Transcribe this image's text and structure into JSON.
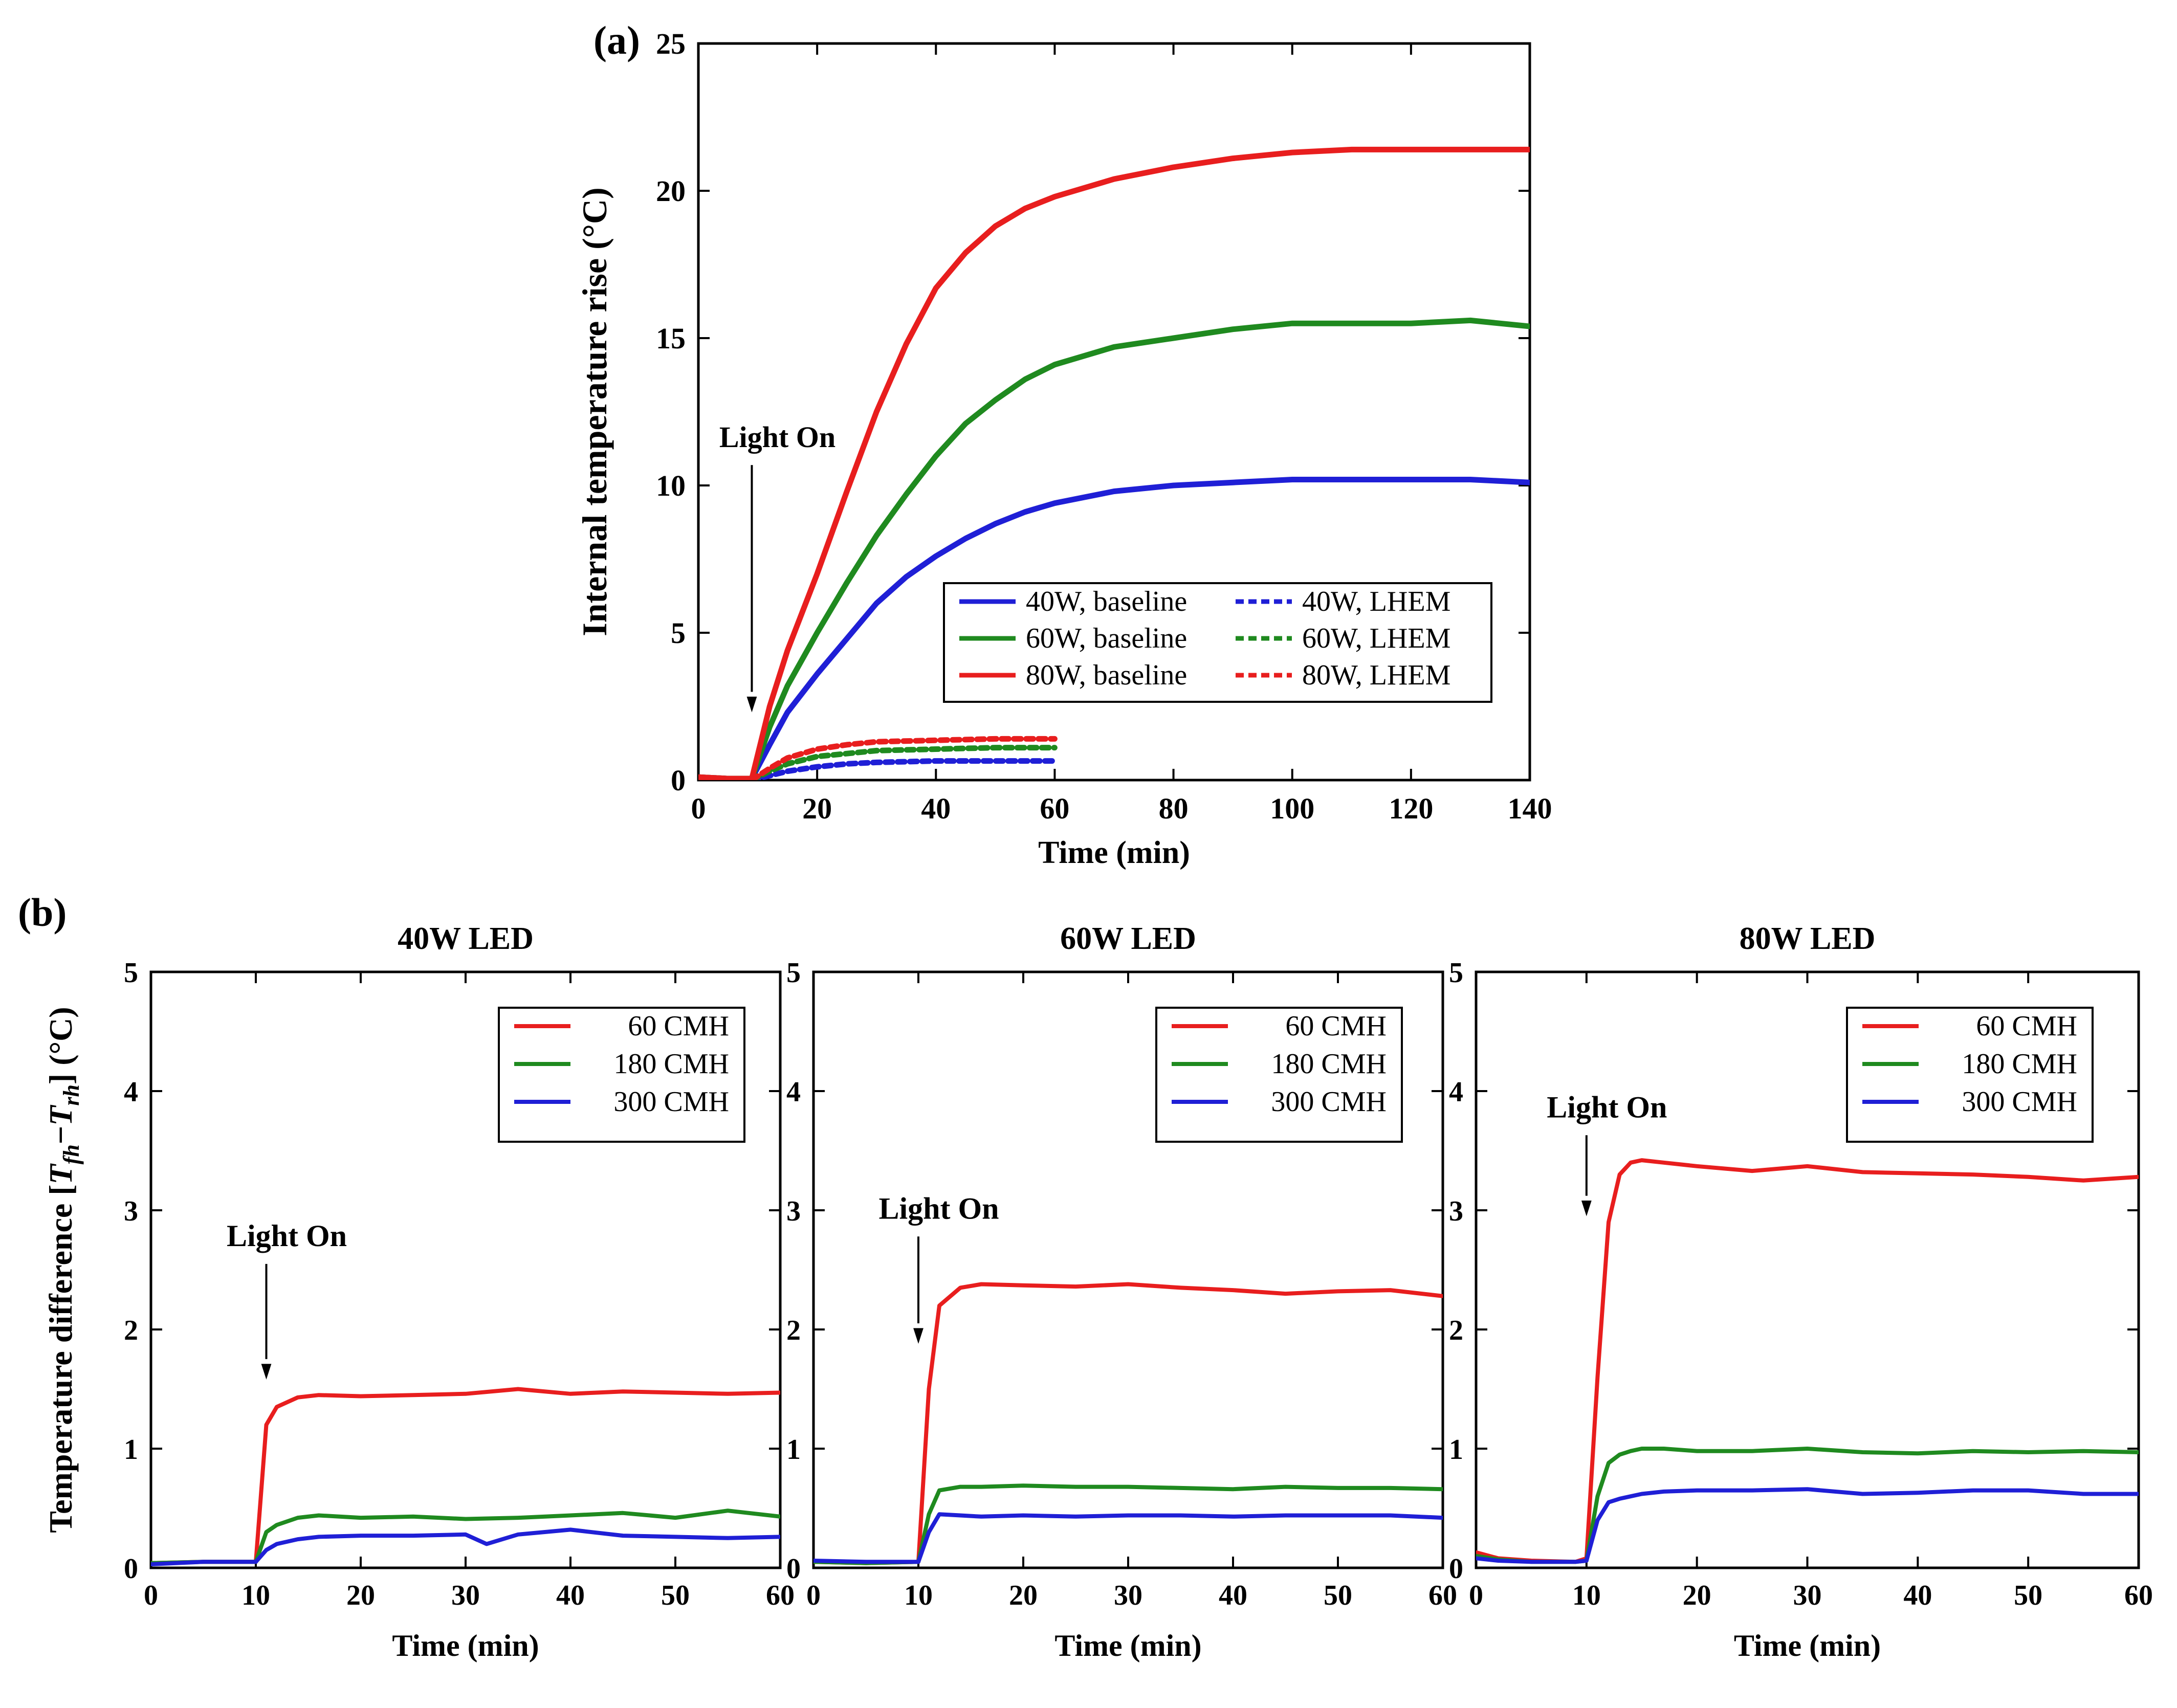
{
  "chart_data": [
    {
      "id": "a",
      "panel_label": "(a)",
      "type": "line",
      "title": "",
      "xlabel": "Time (min)",
      "ylabel": "Internal temperature rise (°C)",
      "xlim": [
        0,
        140
      ],
      "ylim": [
        0,
        25
      ],
      "xticks": [
        0,
        20,
        40,
        60,
        80,
        100,
        120,
        140
      ],
      "yticks": [
        0,
        5,
        10,
        15,
        20,
        25
      ],
      "legend_position": "lower-right",
      "annotation": {
        "text": "Light On",
        "x": 9,
        "y": 2.3,
        "text_y": 11.3
      },
      "series": [
        {
          "name": "40W, baseline",
          "color": "#1f1fd6",
          "dash": false,
          "x": [
            0,
            5,
            9,
            12,
            15,
            20,
            25,
            30,
            35,
            40,
            45,
            50,
            55,
            60,
            70,
            80,
            90,
            100,
            110,
            120,
            130,
            140
          ],
          "y": [
            0.1,
            0.05,
            0.05,
            1.2,
            2.3,
            3.6,
            4.8,
            6.0,
            6.9,
            7.6,
            8.2,
            8.7,
            9.1,
            9.4,
            9.8,
            10.0,
            10.1,
            10.2,
            10.2,
            10.2,
            10.2,
            10.1
          ]
        },
        {
          "name": "60W, baseline",
          "color": "#1f8a1f",
          "dash": false,
          "x": [
            0,
            5,
            9,
            12,
            15,
            20,
            25,
            30,
            35,
            40,
            45,
            50,
            55,
            60,
            70,
            80,
            90,
            100,
            110,
            120,
            130,
            140
          ],
          "y": [
            0.1,
            0.05,
            0.05,
            1.8,
            3.2,
            5.0,
            6.7,
            8.3,
            9.7,
            11.0,
            12.1,
            12.9,
            13.6,
            14.1,
            14.7,
            15.0,
            15.3,
            15.5,
            15.5,
            15.5,
            15.6,
            15.4
          ]
        },
        {
          "name": "80W, baseline",
          "color": "#e81e1e",
          "dash": false,
          "x": [
            0,
            5,
            9,
            12,
            15,
            20,
            25,
            30,
            35,
            40,
            45,
            50,
            55,
            60,
            70,
            80,
            90,
            100,
            110,
            120,
            130,
            140
          ],
          "y": [
            0.1,
            0.05,
            0.05,
            2.5,
            4.4,
            7.0,
            9.8,
            12.5,
            14.8,
            16.7,
            17.9,
            18.8,
            19.4,
            19.8,
            20.4,
            20.8,
            21.1,
            21.3,
            21.4,
            21.4,
            21.4,
            21.4
          ]
        },
        {
          "name": "40W, LHEM",
          "color": "#1f1fd6",
          "dash": true,
          "x": [
            9,
            12,
            15,
            20,
            25,
            30,
            40,
            50,
            60
          ],
          "y": [
            0.0,
            0.15,
            0.3,
            0.45,
            0.55,
            0.6,
            0.65,
            0.65,
            0.65
          ]
        },
        {
          "name": "60W, LHEM",
          "color": "#1f8a1f",
          "dash": true,
          "x": [
            9,
            12,
            15,
            20,
            25,
            30,
            40,
            50,
            60
          ],
          "y": [
            0.0,
            0.3,
            0.55,
            0.8,
            0.9,
            1.0,
            1.05,
            1.1,
            1.1
          ]
        },
        {
          "name": "80W, LHEM",
          "color": "#e81e1e",
          "dash": true,
          "x": [
            9,
            12,
            15,
            20,
            25,
            30,
            40,
            50,
            60
          ],
          "y": [
            0.0,
            0.4,
            0.75,
            1.05,
            1.2,
            1.3,
            1.35,
            1.4,
            1.4
          ]
        }
      ]
    },
    {
      "id": "b1",
      "panel_label": "(b)",
      "type": "line",
      "title": "40W LED",
      "xlabel": "Time (min)",
      "ylabel": "Temperature difference [T_fh − T_rh] (°C)",
      "ylabel_parts": {
        "prefix": "Temperature difference [",
        "t1": "T",
        "s1": "fh",
        "minus": "−",
        "t2": "T",
        "s2": "rh",
        "suffix": "] (°C)"
      },
      "xlim": [
        0,
        60
      ],
      "ylim": [
        0,
        5
      ],
      "xticks": [
        0,
        10,
        20,
        30,
        40,
        50,
        60
      ],
      "yticks": [
        0,
        1,
        2,
        3,
        4,
        5
      ],
      "legend_position": "top-right",
      "annotation": {
        "text": "Light On",
        "x": 11,
        "y": 1.58,
        "text_y": 2.7
      },
      "series": [
        {
          "name": "60 CMH",
          "color": "#e81e1e",
          "x": [
            0,
            5,
            10,
            11,
            12,
            14,
            16,
            20,
            25,
            30,
            35,
            40,
            45,
            50,
            55,
            60
          ],
          "y": [
            0.04,
            0.05,
            0.05,
            1.2,
            1.35,
            1.43,
            1.45,
            1.44,
            1.45,
            1.46,
            1.5,
            1.46,
            1.48,
            1.47,
            1.46,
            1.47
          ]
        },
        {
          "name": "180 CMH",
          "color": "#1f8a1f",
          "x": [
            0,
            5,
            10,
            11,
            12,
            14,
            16,
            20,
            25,
            30,
            35,
            40,
            45,
            50,
            55,
            60
          ],
          "y": [
            0.04,
            0.05,
            0.05,
            0.3,
            0.36,
            0.42,
            0.44,
            0.42,
            0.43,
            0.41,
            0.42,
            0.44,
            0.46,
            0.42,
            0.48,
            0.43
          ]
        },
        {
          "name": "300 CMH",
          "color": "#1f1fd6",
          "x": [
            0,
            5,
            10,
            11,
            12,
            14,
            16,
            20,
            25,
            30,
            32,
            35,
            40,
            45,
            50,
            55,
            60
          ],
          "y": [
            0.03,
            0.05,
            0.05,
            0.15,
            0.2,
            0.24,
            0.26,
            0.27,
            0.27,
            0.28,
            0.2,
            0.28,
            0.32,
            0.27,
            0.26,
            0.25,
            0.26
          ]
        }
      ]
    },
    {
      "id": "b2",
      "panel_label": "",
      "type": "line",
      "title": "60W LED",
      "xlabel": "Time (min)",
      "ylabel": "",
      "xlim": [
        0,
        60
      ],
      "ylim": [
        0,
        5
      ],
      "xticks": [
        0,
        10,
        20,
        30,
        40,
        50,
        60
      ],
      "yticks": [
        0,
        1,
        2,
        3,
        4,
        5
      ],
      "legend_position": "top-right",
      "annotation": {
        "text": "Light On",
        "x": 10,
        "y": 1.88,
        "text_y": 2.93
      },
      "series": [
        {
          "name": "60 CMH",
          "color": "#e81e1e",
          "x": [
            0,
            5,
            10,
            11,
            12,
            14,
            16,
            20,
            25,
            30,
            35,
            40,
            45,
            50,
            55,
            60
          ],
          "y": [
            0.05,
            0.04,
            0.05,
            1.5,
            2.2,
            2.35,
            2.38,
            2.37,
            2.36,
            2.38,
            2.35,
            2.33,
            2.3,
            2.32,
            2.33,
            2.28
          ]
        },
        {
          "name": "180 CMH",
          "color": "#1f8a1f",
          "x": [
            0,
            5,
            10,
            11,
            12,
            14,
            16,
            20,
            25,
            30,
            35,
            40,
            45,
            50,
            55,
            60
          ],
          "y": [
            0.05,
            0.04,
            0.05,
            0.45,
            0.65,
            0.68,
            0.68,
            0.69,
            0.68,
            0.68,
            0.67,
            0.66,
            0.68,
            0.67,
            0.67,
            0.66
          ]
        },
        {
          "name": "300 CMH",
          "color": "#1f1fd6",
          "x": [
            0,
            5,
            10,
            11,
            12,
            14,
            16,
            20,
            25,
            30,
            35,
            40,
            45,
            50,
            55,
            60
          ],
          "y": [
            0.06,
            0.05,
            0.05,
            0.3,
            0.45,
            0.44,
            0.43,
            0.44,
            0.43,
            0.44,
            0.44,
            0.43,
            0.44,
            0.44,
            0.44,
            0.42
          ]
        }
      ]
    },
    {
      "id": "b3",
      "panel_label": "",
      "type": "line",
      "title": "80W LED",
      "xlabel": "Time (min)",
      "ylabel": "",
      "xlim": [
        0,
        60
      ],
      "ylim": [
        0,
        5
      ],
      "xticks": [
        0,
        10,
        20,
        30,
        40,
        50,
        60
      ],
      "yticks": [
        0,
        1,
        2,
        3,
        4,
        5
      ],
      "legend_position": "top-right",
      "annotation": {
        "text": "Light On",
        "x": 10,
        "y": 2.95,
        "text_y": 3.78
      },
      "series": [
        {
          "name": "60 CMH",
          "color": "#e81e1e",
          "x": [
            0,
            2,
            5,
            9,
            10,
            11,
            12,
            13,
            14,
            15,
            17,
            20,
            25,
            30,
            35,
            40,
            45,
            50,
            55,
            60
          ],
          "y": [
            0.13,
            0.08,
            0.06,
            0.05,
            0.08,
            1.6,
            2.9,
            3.3,
            3.4,
            3.42,
            3.4,
            3.37,
            3.33,
            3.37,
            3.32,
            3.31,
            3.3,
            3.28,
            3.25,
            3.28
          ]
        },
        {
          "name": "180 CMH",
          "color": "#1f8a1f",
          "x": [
            0,
            2,
            5,
            9,
            10,
            11,
            12,
            13,
            14,
            15,
            17,
            20,
            25,
            30,
            35,
            40,
            45,
            50,
            55,
            60
          ],
          "y": [
            0.1,
            0.07,
            0.05,
            0.05,
            0.06,
            0.6,
            0.88,
            0.95,
            0.98,
            1.0,
            1.0,
            0.98,
            0.98,
            1.0,
            0.97,
            0.96,
            0.98,
            0.97,
            0.98,
            0.97
          ]
        },
        {
          "name": "300 CMH",
          "color": "#1f1fd6",
          "x": [
            0,
            2,
            5,
            9,
            10,
            11,
            12,
            13,
            14,
            15,
            17,
            20,
            25,
            30,
            35,
            40,
            45,
            50,
            55,
            60
          ],
          "y": [
            0.08,
            0.06,
            0.05,
            0.05,
            0.06,
            0.4,
            0.55,
            0.58,
            0.6,
            0.62,
            0.64,
            0.65,
            0.65,
            0.66,
            0.62,
            0.63,
            0.65,
            0.65,
            0.62,
            0.62
          ]
        }
      ]
    }
  ]
}
